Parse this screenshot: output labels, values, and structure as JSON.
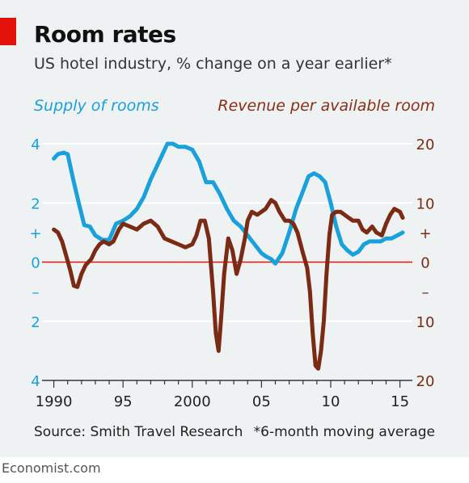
{
  "header": {
    "title": "Room rates",
    "subtitle": "US hotel industry, % change on a year earlier*"
  },
  "footer": {
    "source": "Source: Smith Travel Research",
    "footnote": "*6-month moving average",
    "brand": "Economist.com"
  },
  "colors": {
    "accent": "#e3120b",
    "supply": "#1aa1db",
    "revpar": "#7b2b14",
    "zero_line": "#e3120b",
    "gridline": "#ffffff",
    "background": "#eef2f3"
  },
  "chart_data": {
    "type": "line",
    "x_label": "",
    "x_range": [
      1989.5,
      2015.9
    ],
    "x_ticks": [
      1990,
      1995,
      2000,
      2005,
      2010,
      2015
    ],
    "x_tick_labels": [
      "1990",
      "95",
      "2000",
      "05",
      "10",
      "15"
    ],
    "left_axis": {
      "label": "Supply of rooms",
      "range": [
        -4,
        4
      ],
      "ticks": [
        4,
        2,
        1,
        0,
        -1,
        -2,
        -4
      ],
      "tick_labels": [
        "4",
        "2",
        "+",
        "0",
        "–",
        "2",
        "4"
      ]
    },
    "right_axis": {
      "label": "Revenue per available room",
      "range": [
        -20,
        20
      ],
      "ticks": [
        20,
        10,
        5,
        0,
        -5,
        -10,
        -20
      ],
      "tick_labels": [
        "20",
        "10",
        "+",
        "0",
        "–",
        "10",
        "20"
      ]
    },
    "gridlines": [
      2,
      0,
      -2,
      -4
    ],
    "series": [
      {
        "name": "Supply of rooms",
        "axis": "left",
        "color": "#1aa1db",
        "x": [
          1990.0,
          1990.3,
          1990.7,
          1991.0,
          1991.4,
          1991.8,
          1992.2,
          1992.6,
          1993.0,
          1993.5,
          1994.0,
          1994.5,
          1995.0,
          1995.5,
          1996.0,
          1996.5,
          1997.0,
          1997.4,
          1997.8,
          1998.2,
          1998.6,
          1999.0,
          1999.5,
          2000.0,
          2000.5,
          2001.0,
          2001.5,
          2002.0,
          2002.5,
          2003.0,
          2003.5,
          2004.0,
          2004.5,
          2005.0,
          2005.3,
          2005.7,
          2006.0,
          2006.5,
          2007.0,
          2007.5,
          2008.0,
          2008.4,
          2008.8,
          2009.2,
          2009.6,
          2010.0,
          2010.4,
          2010.8,
          2011.2,
          2011.6,
          2012.0,
          2012.4,
          2012.8,
          2013.2,
          2013.6,
          2014.0,
          2014.4,
          2014.8,
          2015.2
        ],
        "values": [
          3.5,
          3.65,
          3.7,
          3.65,
          2.8,
          2.0,
          1.25,
          1.2,
          0.9,
          0.75,
          0.75,
          1.3,
          1.4,
          1.55,
          1.8,
          2.2,
          2.8,
          3.2,
          3.6,
          4.0,
          4.0,
          3.9,
          3.9,
          3.8,
          3.4,
          2.7,
          2.7,
          2.3,
          1.8,
          1.4,
          1.2,
          0.9,
          0.6,
          0.3,
          0.2,
          0.1,
          -0.05,
          0.3,
          1.0,
          1.8,
          2.4,
          2.9,
          3.0,
          2.9,
          2.7,
          2.0,
          1.2,
          0.6,
          0.4,
          0.25,
          0.35,
          0.6,
          0.7,
          0.7,
          0.7,
          0.8,
          0.8,
          0.9,
          1.0
        ]
      },
      {
        "name": "Revenue per available room",
        "axis": "right",
        "color": "#7b2b14",
        "x": [
          1990.0,
          1990.3,
          1990.6,
          1990.9,
          1991.2,
          1991.45,
          1991.7,
          1992.0,
          1992.3,
          1992.7,
          1993.0,
          1993.3,
          1993.6,
          1994.0,
          1994.3,
          1994.7,
          1995.0,
          1995.5,
          1996.0,
          1996.5,
          1997.0,
          1997.5,
          1998.0,
          1998.5,
          1999.0,
          1999.5,
          2000.0,
          2000.3,
          2000.6,
          2000.9,
          2001.2,
          2001.5,
          2001.7,
          2001.9,
          2002.1,
          2002.3,
          2002.6,
          2002.9,
          2003.2,
          2003.5,
          2003.8,
          2004.0,
          2004.3,
          2004.7,
          2005.0,
          2005.3,
          2005.7,
          2006.0,
          2006.3,
          2006.7,
          2007.0,
          2007.3,
          2007.6,
          2008.0,
          2008.3,
          2008.5,
          2008.7,
          2008.9,
          2009.1,
          2009.3,
          2009.5,
          2009.7,
          2009.9,
          2010.1,
          2010.4,
          2010.7,
          2011.0,
          2011.3,
          2011.6,
          2012.0,
          2012.3,
          2012.6,
          2013.0,
          2013.3,
          2013.7,
          2014.0,
          2014.3,
          2014.6,
          2015.0,
          2015.2
        ],
        "values": [
          5.5,
          5.0,
          3.5,
          1.0,
          -1.5,
          -4.0,
          -4.2,
          -2.0,
          -0.5,
          0.5,
          2.0,
          3.0,
          3.5,
          3.0,
          3.5,
          5.5,
          6.5,
          6.0,
          5.5,
          6.5,
          7.0,
          6.0,
          4.0,
          3.5,
          3.0,
          2.5,
          3.0,
          4.5,
          7.0,
          7.0,
          4.0,
          -5.0,
          -12.0,
          -15.0,
          -9.0,
          -2.0,
          4.0,
          2.0,
          -2.0,
          0.5,
          4.0,
          7.0,
          8.5,
          8.0,
          8.5,
          9.0,
          10.5,
          10.0,
          8.5,
          7.0,
          7.0,
          6.5,
          5.0,
          1.5,
          -1.0,
          -5.0,
          -12.0,
          -17.5,
          -18.0,
          -15.0,
          -10.0,
          -2.0,
          4.5,
          8.0,
          8.5,
          8.5,
          8.0,
          7.5,
          7.0,
          7.0,
          5.5,
          5.0,
          6.0,
          5.0,
          4.5,
          6.5,
          8.0,
          9.0,
          8.5,
          7.5
        ]
      }
    ]
  }
}
